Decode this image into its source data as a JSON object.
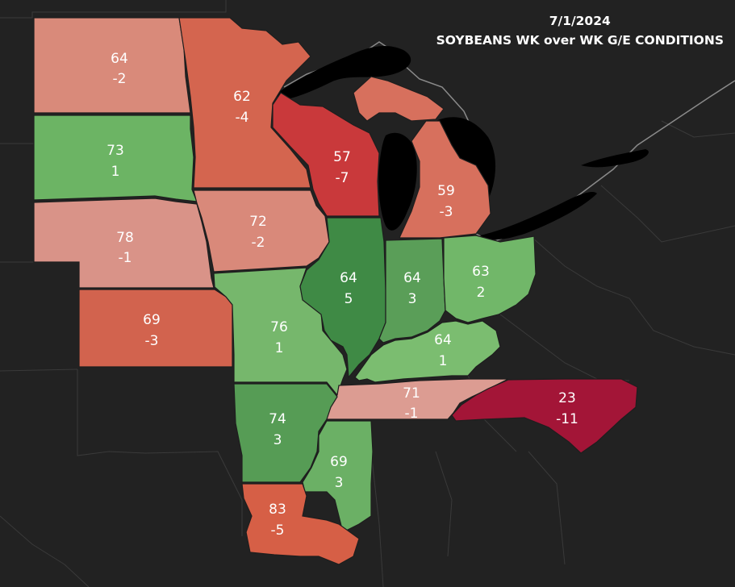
{
  "title": {
    "date": "7/1/2024",
    "subtitle": "SOYBEANS WK over WK G/E CONDITIONS"
  },
  "states": [
    {
      "id": "ND",
      "name": "North Dakota",
      "value": "64",
      "change": "-2",
      "color": "#d98a7a"
    },
    {
      "id": "SD",
      "name": "South Dakota",
      "value": "73",
      "change": "1",
      "color": "#6cb464"
    },
    {
      "id": "NE",
      "name": "Nebraska",
      "value": "78",
      "change": "-1",
      "color": "#d99388"
    },
    {
      "id": "KS",
      "name": "Kansas",
      "value": "69",
      "change": "-3",
      "color": "#d2634e"
    },
    {
      "id": "MN",
      "name": "Minnesota",
      "value": "62",
      "change": "-4",
      "color": "#d4654f"
    },
    {
      "id": "IA",
      "name": "Iowa",
      "value": "72",
      "change": "-2",
      "color": "#d9897a"
    },
    {
      "id": "WI",
      "name": "Wisconsin",
      "value": "57",
      "change": "-7",
      "color": "#c9393b"
    },
    {
      "id": "MI",
      "name": "Michigan",
      "value": "59",
      "change": "-3",
      "color": "#d7705d"
    },
    {
      "id": "MO",
      "name": "Missouri",
      "value": "76",
      "change": "1",
      "color": "#76b76c"
    },
    {
      "id": "IL",
      "name": "Illinois",
      "value": "64",
      "change": "5",
      "color": "#3f8a45"
    },
    {
      "id": "IN",
      "name": "Indiana",
      "value": "64",
      "change": "3",
      "color": "#5a9e58"
    },
    {
      "id": "OH",
      "name": "Ohio",
      "value": "63",
      "change": "2",
      "color": "#71b769"
    },
    {
      "id": "KY",
      "name": "Kentucky",
      "value": "64",
      "change": "1",
      "color": "#7bbd70"
    },
    {
      "id": "TN",
      "name": "Tennessee",
      "value": "71",
      "change": "-1",
      "color": "#dc9c92"
    },
    {
      "id": "NC",
      "name": "North Carolina",
      "value": "23",
      "change": "-11",
      "color": "#a31537"
    },
    {
      "id": "AR",
      "name": "Arkansas",
      "value": "74",
      "change": "3",
      "color": "#569c55"
    },
    {
      "id": "MS",
      "name": "Mississippi",
      "value": "69",
      "change": "3",
      "color": "#6bb065"
    },
    {
      "id": "LA",
      "name": "Louisiana",
      "value": "83",
      "change": "-5",
      "color": "#d65f46"
    }
  ],
  "colors": {
    "background": "#222222",
    "water": "#000000",
    "text": "#ffffff"
  }
}
